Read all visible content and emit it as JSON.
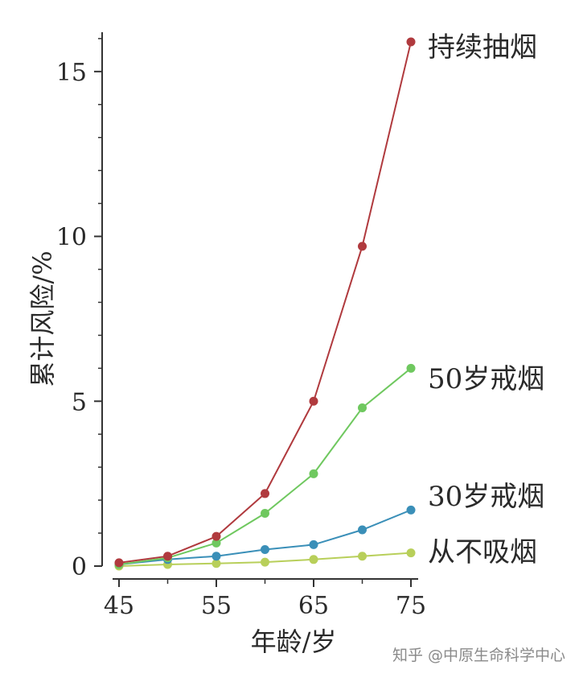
{
  "chart_data": {
    "type": "line",
    "xlabel": "年龄/岁",
    "ylabel": "累计风险/%",
    "x": [
      45,
      50,
      55,
      60,
      65,
      70,
      75
    ],
    "xlim": [
      45,
      75
    ],
    "ylim": [
      0,
      16
    ],
    "x_ticks": [
      "45",
      "55",
      "65",
      "75"
    ],
    "y_ticks": [
      "0",
      "5",
      "10",
      "15"
    ],
    "grid": false,
    "legend": "labels at line ends",
    "series": [
      {
        "name": "持续抽烟",
        "color": "#b03a3e",
        "values": [
          0.1,
          0.3,
          0.9,
          2.2,
          5.0,
          9.7,
          15.9
        ]
      },
      {
        "name": "50岁戒烟",
        "color": "#6fc85f",
        "values": [
          0.05,
          0.25,
          0.7,
          1.6,
          2.8,
          4.8,
          6.0
        ]
      },
      {
        "name": "30岁戒烟",
        "color": "#3a8fb8",
        "values": [
          0.05,
          0.2,
          0.3,
          0.5,
          0.65,
          1.1,
          1.7
        ]
      },
      {
        "name": "从不吸烟",
        "color": "#b8cf5a",
        "values": [
          0.0,
          0.05,
          0.08,
          0.12,
          0.2,
          0.3,
          0.4
        ]
      }
    ]
  },
  "watermark": "知乎 @中原生命科学中心"
}
